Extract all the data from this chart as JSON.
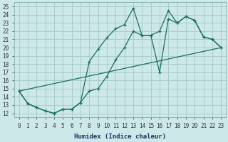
{
  "background_color": "#cde8e8",
  "grid_color": "#a8cccc",
  "line_color": "#1a6e60",
  "xlabel": "Humidex (Indice chaleur)",
  "xlim": [
    -0.5,
    23.5
  ],
  "ylim": [
    11.5,
    25.5
  ],
  "xticks": [
    0,
    1,
    2,
    3,
    4,
    5,
    6,
    7,
    8,
    9,
    10,
    11,
    12,
    13,
    14,
    15,
    16,
    17,
    18,
    19,
    20,
    21,
    22,
    23
  ],
  "yticks": [
    12,
    13,
    14,
    15,
    16,
    17,
    18,
    19,
    20,
    21,
    22,
    23,
    24,
    25
  ],
  "line1_x": [
    0,
    1,
    2,
    3,
    4,
    5,
    6,
    7,
    8,
    9,
    10,
    11,
    12,
    13,
    14,
    15,
    16,
    17,
    18,
    19,
    20,
    21,
    22,
    23
  ],
  "line1_y": [
    14.7,
    13.2,
    12.7,
    12.3,
    12.0,
    12.5,
    12.5,
    13.3,
    18.3,
    19.8,
    21.2,
    22.3,
    22.8,
    24.8,
    21.5,
    21.5,
    17.0,
    23.5,
    23.0,
    23.8,
    23.3,
    21.3,
    21.0,
    20.0
  ],
  "line2_x": [
    0,
    1,
    2,
    3,
    4,
    5,
    6,
    7,
    8,
    9,
    10,
    11,
    12,
    13,
    14,
    15,
    16,
    17,
    18,
    19,
    20,
    21,
    22,
    23
  ],
  "line2_y": [
    14.7,
    13.2,
    12.7,
    12.3,
    12.0,
    12.5,
    12.5,
    13.3,
    14.7,
    15.0,
    16.5,
    18.5,
    20.0,
    22.0,
    21.5,
    21.5,
    22.0,
    24.5,
    23.0,
    23.8,
    23.3,
    21.3,
    21.0,
    20.0
  ],
  "line3_x": [
    0,
    23
  ],
  "line3_y": [
    14.7,
    20.0
  ],
  "title_color": "#1a3060",
  "tick_fontsize": 5.5,
  "xlabel_fontsize": 6.5
}
